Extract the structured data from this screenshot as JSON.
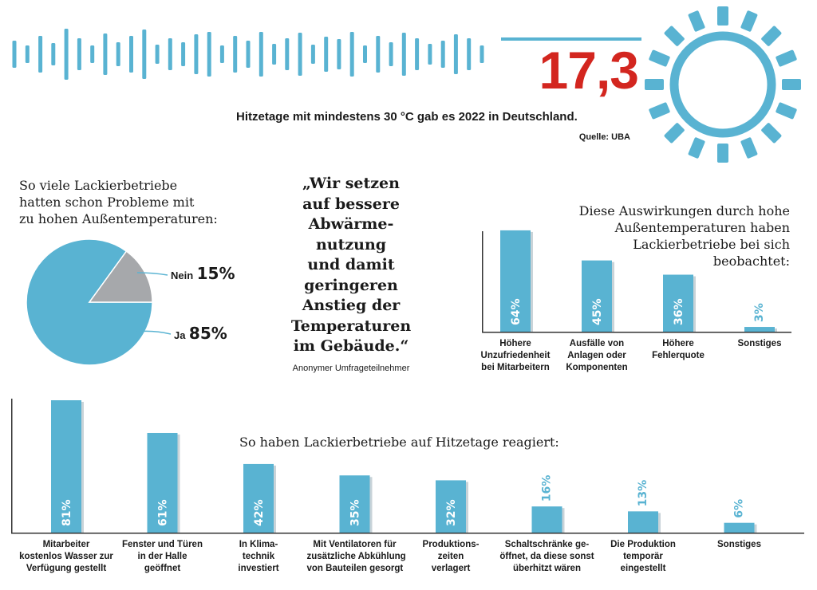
{
  "header": {
    "big_number": "17,3",
    "caption": "Hitzetage mit mindestens 30 °C gab es 2022 in Deutschland.",
    "source": "Quelle: UBA"
  },
  "pie": {
    "title_lines": [
      "So viele Lackierbetriebe",
      "hatten schon Probleme mit",
      "zu hohen Außentemperaturen:"
    ],
    "slices": [
      {
        "label": "Nein",
        "value": 15,
        "value_text": "15%",
        "color": "#a6a8ab"
      },
      {
        "label": "Ja",
        "value": 85,
        "value_text": "85%",
        "color": "#59b3d2"
      }
    ]
  },
  "quote": {
    "lines": [
      "„Wir setzen",
      "auf bessere",
      "Abwärme-",
      "nutzung",
      "und damit",
      "geringeren",
      "Anstieg der",
      "Temperaturen",
      "im Gebäude.“"
    ],
    "author": "Anonymer Umfrageteilnehmer"
  },
  "effects": {
    "title_lines": [
      "Diese Auswirkungen durch hohe",
      "Außentemperaturen haben",
      "Lackierbetriebe bei sich",
      "beobachtet:"
    ]
  },
  "reactions": {
    "title": "So haben Lackierbetriebe auf Hitzetage reagiert:"
  },
  "colors": {
    "accent": "#59b3d2",
    "highlight": "#d3261f",
    "grey": "#a6a8ab"
  },
  "icons": [
    "sound-wave-icon",
    "sun-icon"
  ],
  "chart_data": [
    {
      "type": "pie",
      "title": "So viele Lackierbetriebe hatten schon Probleme mit zu hohen Außentemperaturen:",
      "categories": [
        "Nein",
        "Ja"
      ],
      "values": [
        15,
        85
      ],
      "unit": "%"
    },
    {
      "type": "bar",
      "title": "Diese Auswirkungen durch hohe Außentemperaturen haben Lackierbetriebe bei sich beobachtet:",
      "categories": [
        [
          "Höhere",
          "Unzufriedenheit",
          "bei Mitarbeitern"
        ],
        [
          "Ausfälle von",
          "Anlagen oder",
          "Komponenten"
        ],
        [
          "Höhere",
          "Fehlerquote"
        ],
        [
          "Sonstiges"
        ]
      ],
      "values": [
        64,
        45,
        36,
        3
      ],
      "value_labels": [
        "64%",
        "45%",
        "36%",
        "3%"
      ],
      "unit": "%",
      "ylim": [
        0,
        70
      ]
    },
    {
      "type": "bar",
      "title": "So haben Lackierbetriebe auf Hitzetage reagiert:",
      "categories": [
        [
          "Mitarbeiter",
          "kostenlos Wasser zur",
          "Verfügung gestellt"
        ],
        [
          "Fenster und Türen",
          "in der Halle",
          "geöffnet"
        ],
        [
          "In Klima-",
          "technik",
          "investiert"
        ],
        [
          "Mit Ventilatoren für",
          "zusätzliche Abkühlung",
          "von Bauteilen gesorgt"
        ],
        [
          "Produktions-",
          "zeiten",
          "verlagert"
        ],
        [
          "Schaltschränke ge-",
          "öffnet, da diese sonst",
          "überhitzt wären"
        ],
        [
          "Die Produktion",
          "temporär",
          "eingestellt"
        ],
        [
          "Sonstiges"
        ]
      ],
      "values": [
        81,
        61,
        42,
        35,
        32,
        16,
        13,
        6
      ],
      "value_labels": [
        "81%",
        "61%",
        "42%",
        "35%",
        "32%",
        "16%",
        "13%",
        "6%"
      ],
      "unit": "%",
      "ylim": [
        0,
        81
      ]
    }
  ]
}
